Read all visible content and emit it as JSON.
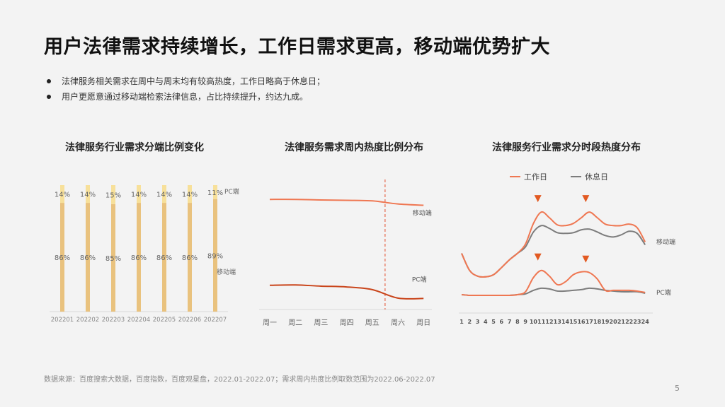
{
  "page": {
    "title": "用户法律需求持续增长，工作日需求更高，移动端优势扩大",
    "bullets": [
      "法律服务相关需求在周中与周末均有较高热度，工作日略高于休息日；",
      "用户更愿意通过移动端检索法律信息，占比持续提升，约达九成。"
    ],
    "footer": "数据来源：百度搜索大数据，百度指数，百度观星盘，2022.01-2022.07；需求周内热度比例取数范围为2022.06-2022.07",
    "page_number": "5"
  },
  "colors": {
    "bar_pc": "#f7e09a",
    "bar_mobile": "#e9c27e",
    "line_mobile": "#ef7752",
    "line_pc": "#c9441a",
    "line_gray": "#7c7c7c",
    "divider": "#e04a2a"
  },
  "chart_data": [
    {
      "type": "bar",
      "title": "法律服务行业需求分端比例变化",
      "categories": [
        "202201",
        "202202",
        "202203",
        "202204",
        "202205",
        "202206",
        "202207"
      ],
      "series": [
        {
          "name": "移动端",
          "values": [
            86,
            86,
            85,
            86,
            86,
            86,
            89
          ],
          "labels": [
            "86%",
            "86%",
            "85%",
            "86%",
            "86%",
            "86%",
            "89%"
          ]
        },
        {
          "name": "PC端",
          "values": [
            14,
            14,
            15,
            14,
            14,
            14,
            11
          ],
          "labels": [
            "14%",
            "14%",
            "15%",
            "14%",
            "14%",
            "14%",
            "11%"
          ]
        }
      ],
      "ylim": [
        0,
        100
      ]
    },
    {
      "type": "line",
      "title": "法律服务需求周内热度比例分布",
      "categories": [
        "周一",
        "周二",
        "周三",
        "周四",
        "周五",
        "周六",
        "周日"
      ],
      "series": [
        {
          "name": "移动端",
          "values": [
            82,
            82,
            81.6,
            81.3,
            80.9,
            78.6,
            77.6
          ]
        },
        {
          "name": "PC端",
          "values": [
            18,
            18.3,
            17.4,
            16.8,
            14.8,
            8.5,
            8.2
          ]
        }
      ],
      "ylim": [
        0,
        100
      ],
      "divider_between": [
        "周五",
        "周六"
      ]
    },
    {
      "type": "line",
      "title": "法律服务行业需求分时段热度分布",
      "categories": [
        "1",
        "2",
        "3",
        "4",
        "5",
        "6",
        "7",
        "8",
        "9",
        "10",
        "11",
        "12",
        "13",
        "14",
        "15",
        "16",
        "17",
        "18",
        "19",
        "20",
        "21",
        "22",
        "23",
        "24"
      ],
      "legend": [
        "工作日",
        "休息日"
      ],
      "series": [
        {
          "name": "工作日",
          "group": "移动端",
          "values": [
            62,
            38,
            30,
            29,
            32,
            42,
            53,
            62,
            75,
            104,
            120,
            112,
            102,
            101,
            104,
            112,
            120,
            112,
            103,
            101,
            101,
            103,
            98,
            78
          ]
        },
        {
          "name": "休息日",
          "group": "移动端",
          "values": [
            62,
            38,
            30,
            29,
            32,
            42,
            53,
            62,
            71,
            92,
            101,
            97,
            91,
            90,
            91,
            95,
            96,
            92,
            87,
            85,
            88,
            93,
            90,
            74
          ]
        },
        {
          "name": "工作日",
          "group": "PC端",
          "values": [
            4,
            3,
            3,
            3,
            3,
            3,
            3,
            4,
            8,
            28,
            38,
            30,
            18,
            22,
            32,
            36,
            35,
            26,
            10,
            10,
            10,
            10,
            9,
            7
          ]
        },
        {
          "name": "休息日",
          "group": "PC端",
          "values": [
            4,
            3,
            3,
            3,
            3,
            3,
            3,
            4,
            5,
            10,
            13,
            12,
            9,
            9,
            10,
            11,
            13,
            12,
            10,
            9,
            8,
            8,
            8,
            6
          ]
        }
      ],
      "annotations": {
        "mobile_group_label": "移动端",
        "pc_group_label": "PC端",
        "peaks_hours": [
          "11",
          "17"
        ]
      },
      "ylim": [
        0,
        130
      ]
    }
  ]
}
